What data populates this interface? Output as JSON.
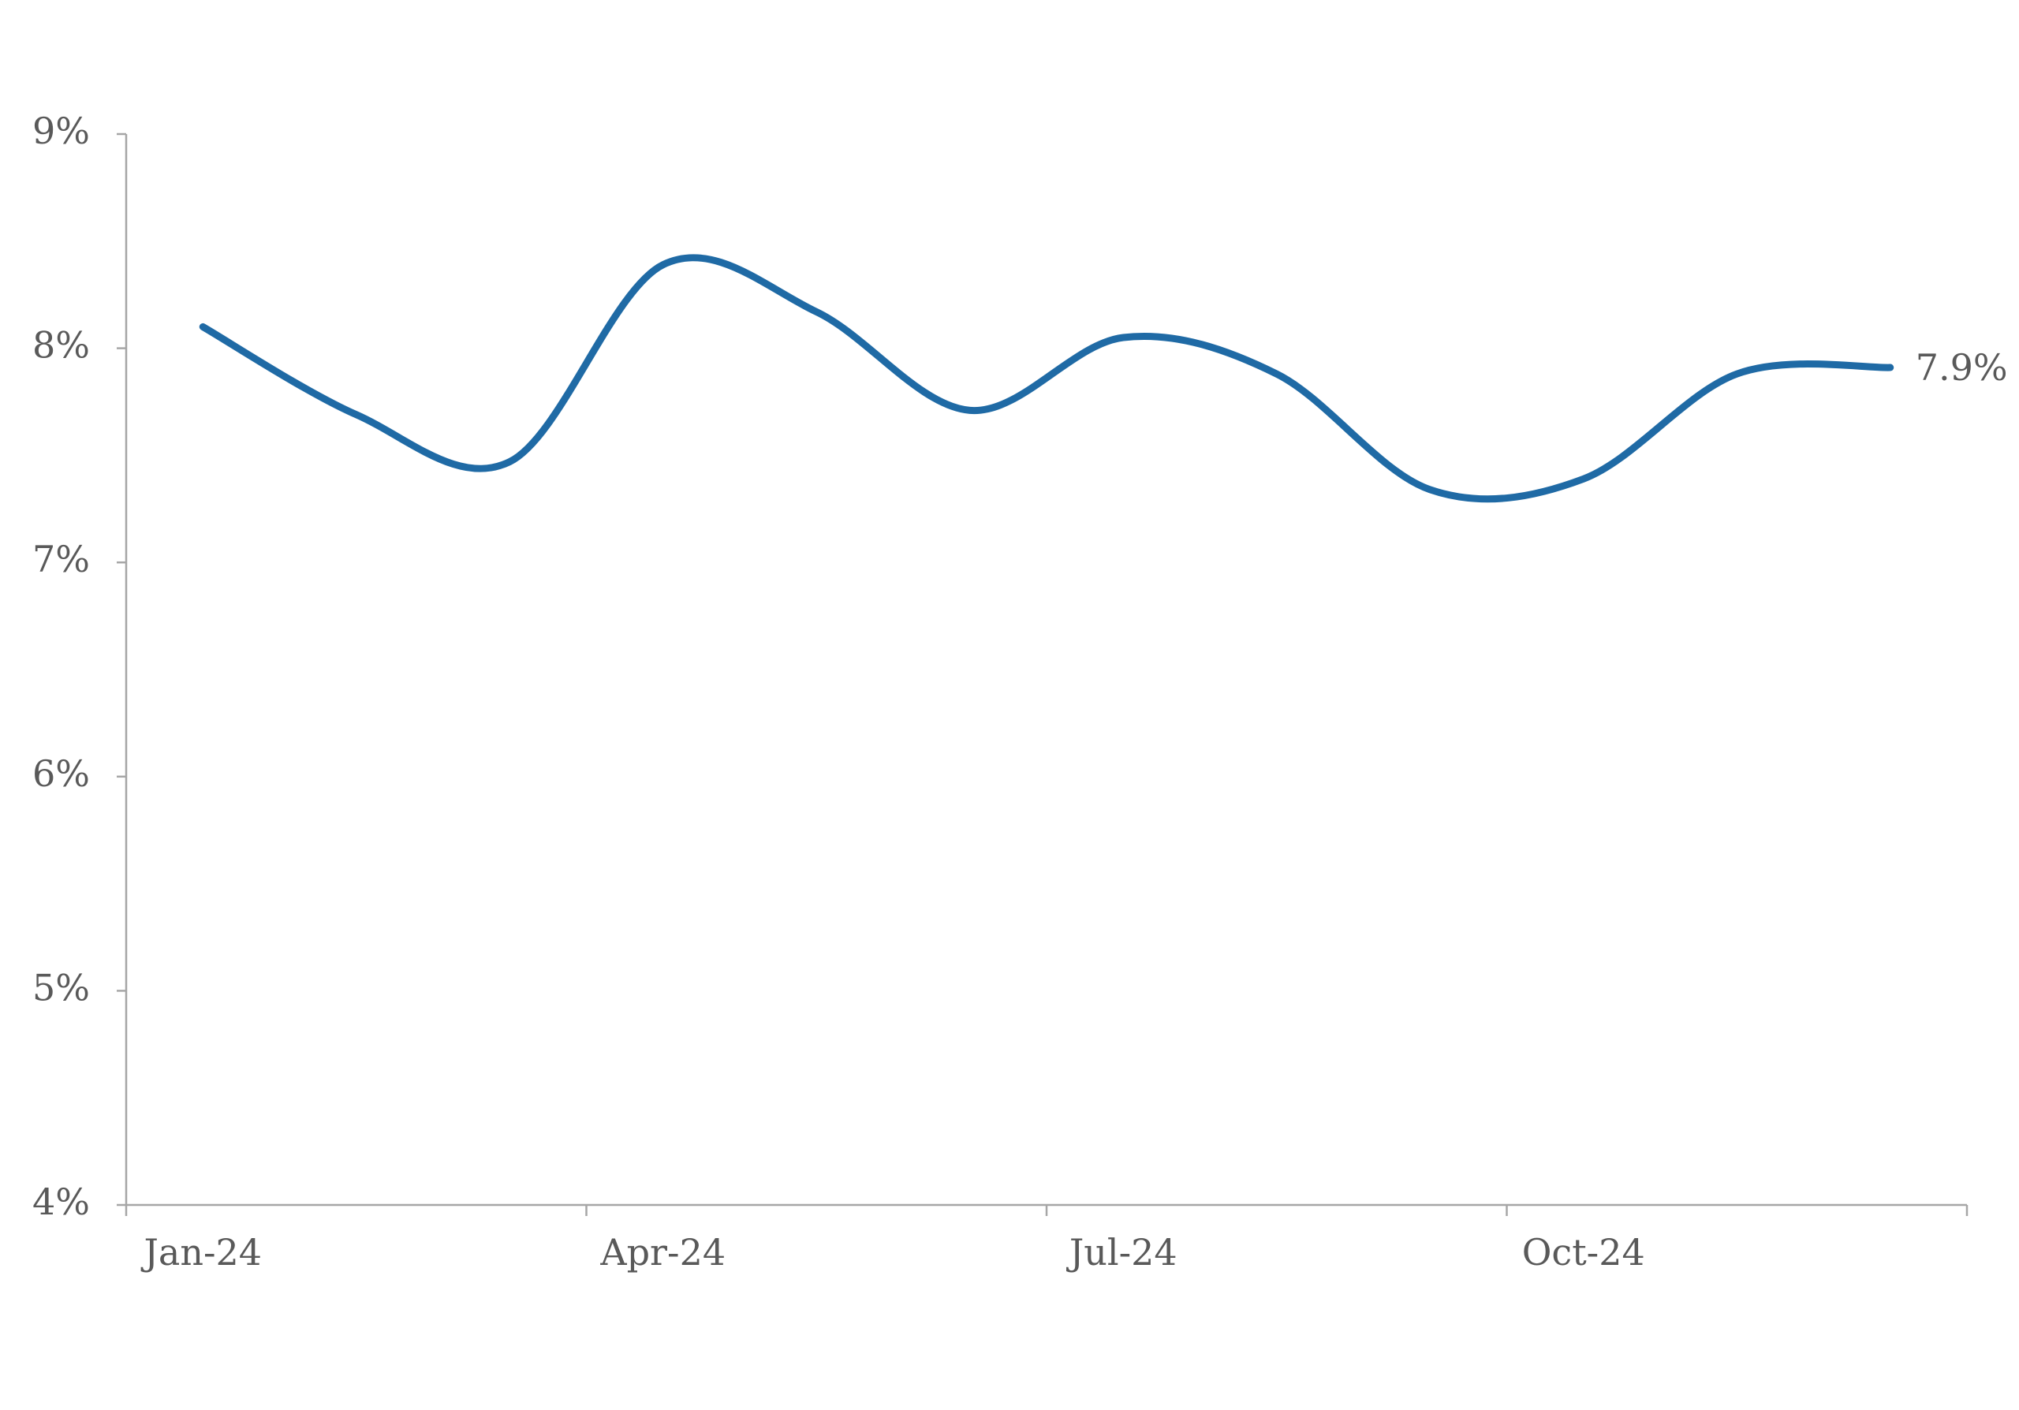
{
  "chart_data": {
    "type": "line",
    "categories": [
      "Jan-24",
      null,
      null,
      "Apr-24",
      null,
      null,
      "Jul-24",
      null,
      null,
      "Oct-24",
      null,
      null
    ],
    "series": [
      {
        "color": "#1f6aa5",
        "values": [
          8.1,
          7.69,
          7.47,
          8.39,
          8.17,
          7.71,
          8.05,
          7.88,
          7.34,
          7.39,
          7.88,
          7.91
        ],
        "value_labels": [
          null,
          null,
          null,
          null,
          null,
          null,
          null,
          null,
          null,
          null,
          null,
          "7.9%"
        ]
      }
    ],
    "ylim": [
      4,
      9
    ],
    "yticks": [
      {
        "value": 4,
        "label": "4%"
      },
      {
        "value": 5,
        "label": "5%"
      },
      {
        "value": 6,
        "label": "6%"
      },
      {
        "value": 7,
        "label": "7%"
      },
      {
        "value": 8,
        "label": "8%"
      },
      {
        "value": 9,
        "label": "9%"
      }
    ],
    "grid": false
  }
}
